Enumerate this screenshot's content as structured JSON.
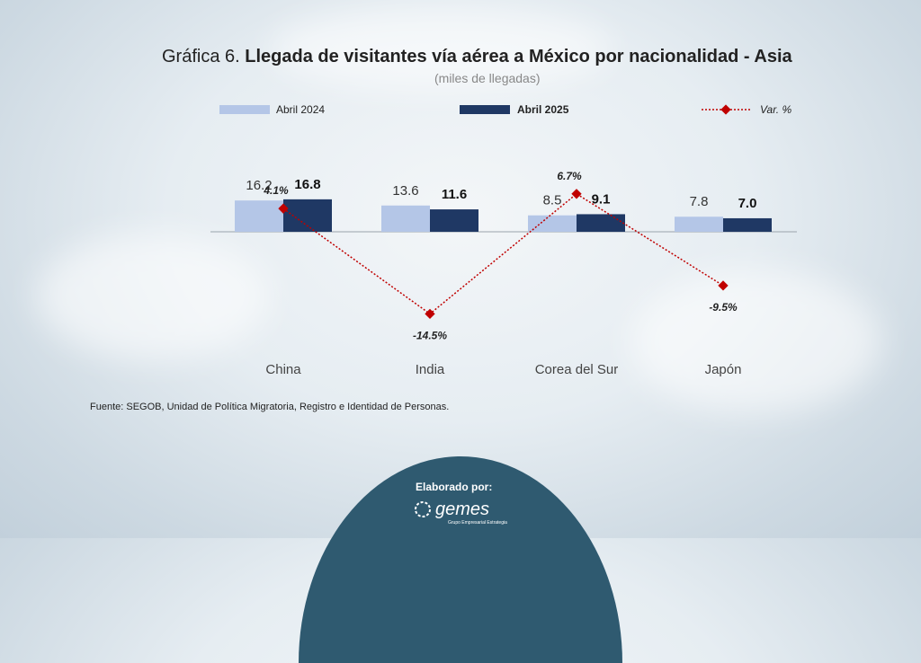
{
  "title": {
    "prefix": "Gráfica 6.",
    "main": "Llegada de visitantes vía aérea a México por nacionalidad - Asia",
    "subtitle": "(miles de llegadas)"
  },
  "legend": {
    "series_2024": "Abril 2024",
    "series_2025": "Abril 2025",
    "variation": "Var. %"
  },
  "source": "Fuente: SEGOB, Unidad de Política Migratoria, Registro e Identidad de Personas.",
  "footer": {
    "label": "Elaborado por:",
    "logo_text": "gemes",
    "logo_sub": "Grupo Empresarial Estrategia"
  },
  "colors": {
    "bar_2024": "#b4c6e7",
    "bar_2025": "#1f3864",
    "variation": "#c00000",
    "footer": "#2f5a70"
  },
  "chart_data": {
    "type": "bar",
    "categories": [
      "China",
      "India",
      "Corea del Sur",
      "Japón"
    ],
    "series": [
      {
        "name": "Abril 2024",
        "values": [
          16.2,
          13.6,
          8.5,
          7.8
        ],
        "labels": [
          "16.2",
          "13.6",
          "8.5",
          "7.8"
        ]
      },
      {
        "name": "Abril 2025",
        "values": [
          16.8,
          11.6,
          9.1,
          7.0
        ],
        "labels": [
          "16.8",
          "11.6",
          "9.1",
          "7.0"
        ]
      }
    ],
    "variation": {
      "name": "Var. %",
      "values": [
        4.1,
        -14.5,
        6.7,
        -9.5
      ],
      "labels": [
        "4.1%",
        "-14.5%",
        "6.7%",
        "-9.5%"
      ]
    },
    "legend_position": "top",
    "grid": false
  }
}
